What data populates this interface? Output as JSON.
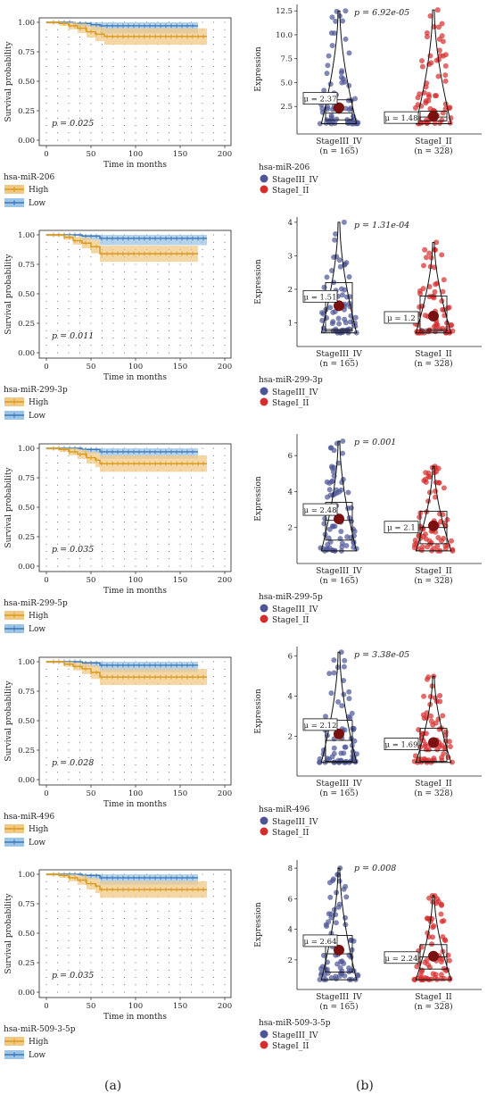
{
  "captions": {
    "left": "(a)",
    "right": "(b)"
  },
  "colors": {
    "high": "#d99a1a",
    "high_band": "#f1c987",
    "low": "#3c78b8",
    "low_band": "#9cc4e6",
    "stage34": "#4d5597",
    "stage12": "#d62c2c",
    "mean": "#7a1010"
  },
  "chart_data": [
    {
      "type": "line",
      "panel": "a",
      "gene": "hsa-miR-206",
      "xlabel": "Time in months",
      "ylabel": "Survival probability",
      "xlim": [
        0,
        200
      ],
      "ylim": [
        0,
        1
      ],
      "xticks": [
        "0",
        "50",
        "100",
        "150",
        "200"
      ],
      "yticks": [
        "0.00",
        "0.25",
        "0.50",
        "0.75",
        "1.00"
      ],
      "pvalue": "p = 0.025",
      "legend_title": "hsa-miR-206",
      "series": [
        {
          "name": "High",
          "x": [
            0,
            15,
            25,
            35,
            45,
            55,
            65,
            180
          ],
          "y": [
            1.0,
            0.99,
            0.97,
            0.95,
            0.92,
            0.9,
            0.88,
            0.88
          ]
        },
        {
          "name": "Low",
          "x": [
            0,
            30,
            50,
            60,
            170
          ],
          "y": [
            1.0,
            0.99,
            0.98,
            0.97,
            0.97
          ]
        }
      ]
    },
    {
      "type": "line",
      "panel": "a",
      "gene": "hsa-miR-299-3p",
      "xlabel": "Time in months",
      "ylabel": "Survival probability",
      "xlim": [
        0,
        200
      ],
      "ylim": [
        0,
        1
      ],
      "xticks": [
        "0",
        "50",
        "100",
        "150",
        "200"
      ],
      "yticks": [
        "0.00",
        "0.25",
        "0.50",
        "0.75",
        "1.00"
      ],
      "pvalue": "p = 0.011",
      "legend_title": "hsa-miR-299-3p",
      "series": [
        {
          "name": "High",
          "x": [
            0,
            20,
            30,
            40,
            50,
            60,
            170
          ],
          "y": [
            1.0,
            0.98,
            0.95,
            0.93,
            0.9,
            0.84,
            0.84
          ]
        },
        {
          "name": "Low",
          "x": [
            0,
            40,
            60,
            180
          ],
          "y": [
            1.0,
            0.99,
            0.97,
            0.97
          ]
        }
      ]
    },
    {
      "type": "line",
      "panel": "a",
      "gene": "hsa-miR-299-5p",
      "xlabel": "Time in months",
      "ylabel": "Survival probability",
      "xlim": [
        0,
        200
      ],
      "ylim": [
        0,
        1
      ],
      "xticks": [
        "0",
        "50",
        "100",
        "150",
        "200"
      ],
      "yticks": [
        "0.00",
        "0.25",
        "0.50",
        "0.75",
        "1.00"
      ],
      "pvalue": "p = 0.035",
      "legend_title": "hsa-miR-299-5p",
      "series": [
        {
          "name": "High",
          "x": [
            0,
            15,
            25,
            35,
            45,
            55,
            60,
            180
          ],
          "y": [
            1.0,
            0.99,
            0.97,
            0.95,
            0.92,
            0.9,
            0.87,
            0.87
          ]
        },
        {
          "name": "Low",
          "x": [
            0,
            40,
            60,
            170
          ],
          "y": [
            1.0,
            0.99,
            0.97,
            0.97
          ]
        }
      ]
    },
    {
      "type": "line",
      "panel": "a",
      "gene": "hsa-miR-496",
      "xlabel": "Time in months",
      "ylabel": "Survival probability",
      "xlim": [
        0,
        200
      ],
      "ylim": [
        0,
        1
      ],
      "xticks": [
        "0",
        "50",
        "100",
        "150",
        "200"
      ],
      "yticks": [
        "0.00",
        "0.25",
        "0.50",
        "0.75",
        "1.00"
      ],
      "pvalue": "p = 0.028",
      "legend_title": "hsa-miR-496",
      "series": [
        {
          "name": "High",
          "x": [
            0,
            20,
            30,
            40,
            50,
            60,
            180
          ],
          "y": [
            1.0,
            0.98,
            0.96,
            0.94,
            0.91,
            0.87,
            0.87
          ]
        },
        {
          "name": "Low",
          "x": [
            0,
            40,
            60,
            170
          ],
          "y": [
            1.0,
            0.99,
            0.97,
            0.97
          ]
        }
      ]
    },
    {
      "type": "line",
      "panel": "a",
      "gene": "hsa-miR-509-3-5p",
      "xlabel": "Time in months",
      "ylabel": "Survival probability",
      "xlim": [
        0,
        200
      ],
      "ylim": [
        0,
        1
      ],
      "xticks": [
        "0",
        "50",
        "100",
        "150",
        "200"
      ],
      "yticks": [
        "0.00",
        "0.25",
        "0.50",
        "0.75",
        "1.00"
      ],
      "pvalue": "p = 0.035",
      "legend_title": "hsa-miR-509-3-5p",
      "series": [
        {
          "name": "High",
          "x": [
            0,
            15,
            25,
            35,
            45,
            55,
            60,
            180
          ],
          "y": [
            1.0,
            0.99,
            0.97,
            0.95,
            0.92,
            0.9,
            0.87,
            0.87
          ]
        },
        {
          "name": "Low",
          "x": [
            0,
            40,
            60,
            170
          ],
          "y": [
            1.0,
            0.99,
            0.97,
            0.97
          ]
        }
      ]
    },
    {
      "type": "scatter",
      "panel": "b",
      "gene": "hsa-miR-206",
      "ylabel": "Expression",
      "ylim": [
        0,
        12.8
      ],
      "yticks": [
        "2.5",
        "5.0",
        "7.5",
        "10.0",
        "12.5"
      ],
      "ytick_values": [
        2.5,
        5,
        7.5,
        10,
        12.5
      ],
      "pvalue": "p = 6.92e-05",
      "legend_title": "hsa-miR-206",
      "groups": [
        {
          "name": "StageIII_IV",
          "n_label": "(n = 165)",
          "mean": 2.37,
          "mean_label": "μ = 2.37",
          "max": 12.5,
          "q1": 1.1,
          "median": 1.8,
          "q3": 3.2,
          "min": 0.7
        },
        {
          "name": "StageI_II",
          "n_label": "(n = 328)",
          "mean": 1.48,
          "mean_label": "μ = 1.48",
          "max": 12.6,
          "q1": 1.0,
          "median": 1.4,
          "q3": 2.0,
          "min": 0.7
        }
      ]
    },
    {
      "type": "scatter",
      "panel": "b",
      "gene": "hsa-miR-299-3p",
      "ylabel": "Expression",
      "ylim": [
        0.4,
        4.05
      ],
      "yticks": [
        "1",
        "2",
        "3",
        "4"
      ],
      "ytick_values": [
        1,
        2,
        3,
        4
      ],
      "pvalue": "p = 1.31e-04",
      "legend_title": "hsa-miR-299-3p",
      "groups": [
        {
          "name": "StageIII_IV",
          "n_label": "(n = 165)",
          "mean": 1.51,
          "mean_label": "μ = 1.51",
          "max": 4.0,
          "q1": 0.75,
          "median": 0.8,
          "q3": 2.2,
          "min": 0.7
        },
        {
          "name": "StageI_II",
          "n_label": "(n = 328)",
          "mean": 1.2,
          "mean_label": "μ = 1.2",
          "max": 3.4,
          "q1": 0.75,
          "median": 0.8,
          "q3": 1.8,
          "min": 0.7
        }
      ]
    },
    {
      "type": "scatter",
      "panel": "b",
      "gene": "hsa-miR-299-5p",
      "ylabel": "Expression",
      "ylim": [
        0.2,
        7.0
      ],
      "yticks": [
        "2",
        "4",
        "6"
      ],
      "ytick_values": [
        2,
        4,
        6
      ],
      "pvalue": "p = 0.001",
      "legend_title": "hsa-miR-299-5p",
      "groups": [
        {
          "name": "StageIII_IV",
          "n_label": "(n = 165)",
          "mean": 2.48,
          "mean_label": "μ = 2.48",
          "max": 6.8,
          "q1": 1.3,
          "median": 2.4,
          "q3": 3.4,
          "min": 0.7
        },
        {
          "name": "StageI_II",
          "n_label": "(n = 328)",
          "mean": 2.1,
          "mean_label": "μ = 2.1",
          "max": 5.4,
          "q1": 1.1,
          "median": 2.0,
          "q3": 2.9,
          "min": 0.7
        }
      ]
    },
    {
      "type": "scatter",
      "panel": "b",
      "gene": "hsa-miR-496",
      "ylabel": "Expression",
      "ylim": [
        0.2,
        6.3
      ],
      "yticks": [
        "2",
        "4",
        "6"
      ],
      "ytick_values": [
        2,
        4,
        6
      ],
      "pvalue": "p = 3.38e-05",
      "legend_title": "hsa-miR-496",
      "groups": [
        {
          "name": "StageIII_IV",
          "n_label": "(n = 165)",
          "mean": 2.12,
          "mean_label": "μ = 2.12",
          "max": 6.2,
          "q1": 0.75,
          "median": 1.8,
          "q3": 2.8,
          "min": 0.7
        },
        {
          "name": "StageI_II",
          "n_label": "(n = 328)",
          "mean": 1.69,
          "mean_label": "μ = 1.69",
          "max": 5.0,
          "q1": 0.75,
          "median": 1.3,
          "q3": 2.4,
          "min": 0.7
        }
      ]
    },
    {
      "type": "scatter",
      "panel": "b",
      "gene": "hsa-miR-509-3-5p",
      "ylabel": "Expression",
      "ylim": [
        0.3,
        8.3
      ],
      "yticks": [
        "2",
        "4",
        "6",
        "8"
      ],
      "ytick_values": [
        2,
        4,
        6,
        8
      ],
      "pvalue": "p = 0.008",
      "legend_title": "hsa-miR-509-3-5p",
      "groups": [
        {
          "name": "StageIII_IV",
          "n_label": "(n = 165)",
          "mean": 2.64,
          "mean_label": "μ = 2.64",
          "max": 8.0,
          "q1": 1.2,
          "median": 2.4,
          "q3": 3.6,
          "min": 0.7
        },
        {
          "name": "StageI_II",
          "n_label": "(n = 328)",
          "mean": 2.24,
          "mean_label": "μ = 2.24",
          "max": 6.2,
          "q1": 1.4,
          "median": 2.2,
          "q3": 3.0,
          "min": 0.7
        }
      ]
    }
  ]
}
